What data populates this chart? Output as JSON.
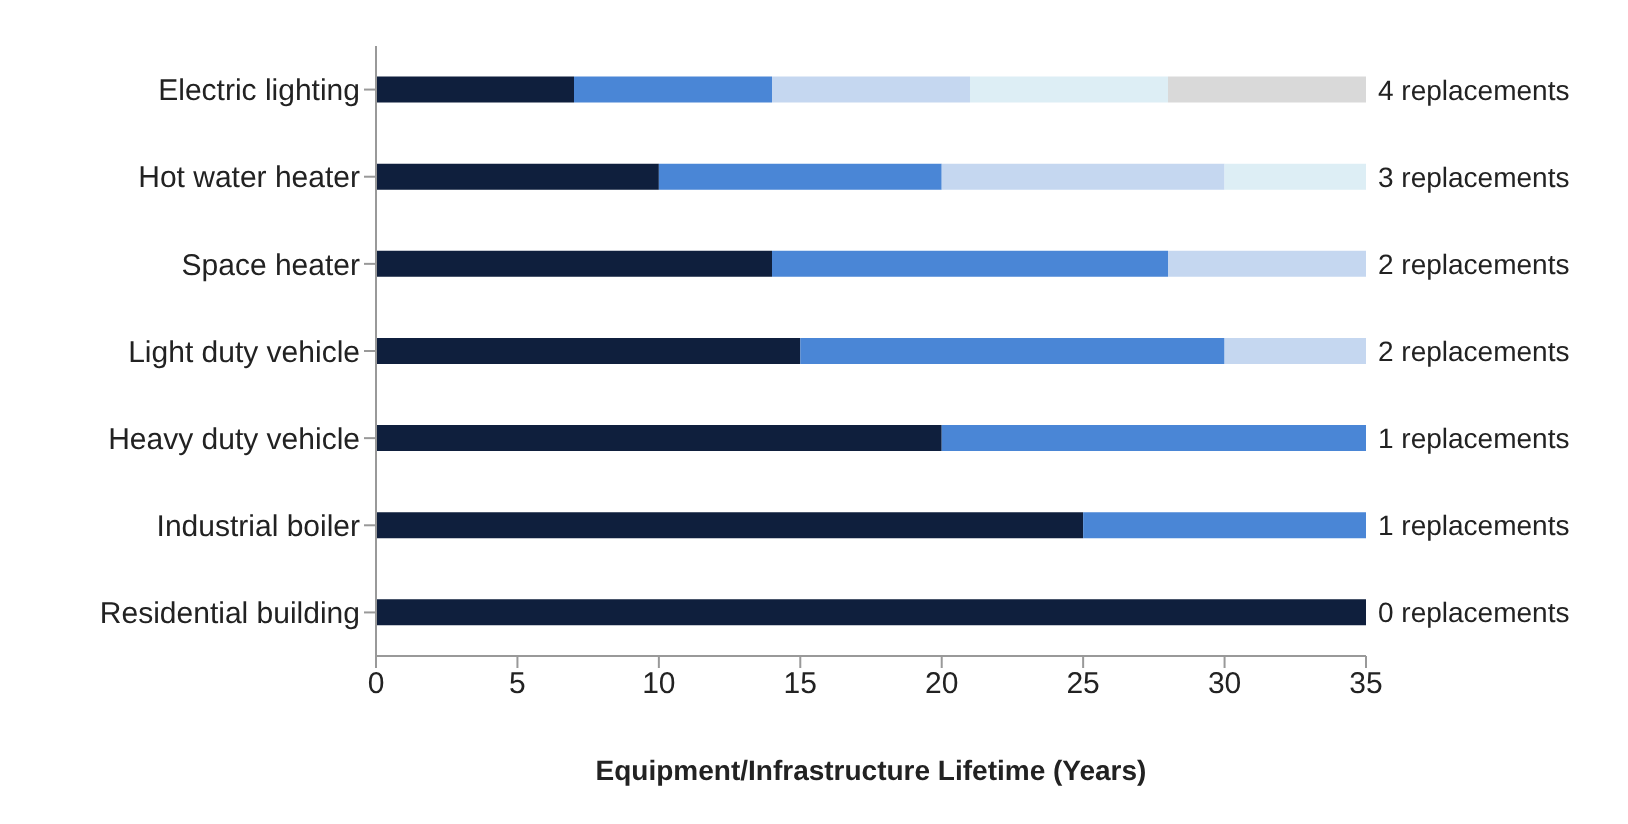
{
  "chart_data": {
    "type": "bar",
    "orientation": "horizontal",
    "stacked": true,
    "xlabel": "Equipment/Infrastructure Lifetime (Years)",
    "categories": [
      "Electric lighting",
      "Hot water heater",
      "Space heater",
      "Light duty vehicle",
      "Heavy duty vehicle",
      "Industrial boiler",
      "Residential building"
    ],
    "series": [
      {
        "color": "#0f1f3d",
        "values": [
          7,
          10,
          14,
          15,
          20,
          25,
          35
        ]
      },
      {
        "color": "#4a86d6",
        "values": [
          7,
          10,
          14,
          15,
          15,
          10,
          null
        ]
      },
      {
        "color": "#c5d7f0",
        "values": [
          7,
          10,
          7,
          5,
          null,
          null,
          null
        ]
      },
      {
        "color": "#ddeef5",
        "values": [
          7,
          5,
          null,
          null,
          null,
          null,
          null
        ]
      },
      {
        "color": "#d9d9d9",
        "values": [
          7,
          null,
          null,
          null,
          null,
          null,
          null
        ]
      }
    ],
    "xlim": [
      0,
      35
    ],
    "xticks": [
      0,
      5,
      10,
      15,
      20,
      25,
      30,
      35
    ],
    "grid": false,
    "legend": false,
    "annotations": [
      "4 replacements",
      "3 replacements",
      "2 replacements",
      "2 replacements",
      "1 replacements",
      "1 replacements",
      "0 replacements"
    ]
  }
}
